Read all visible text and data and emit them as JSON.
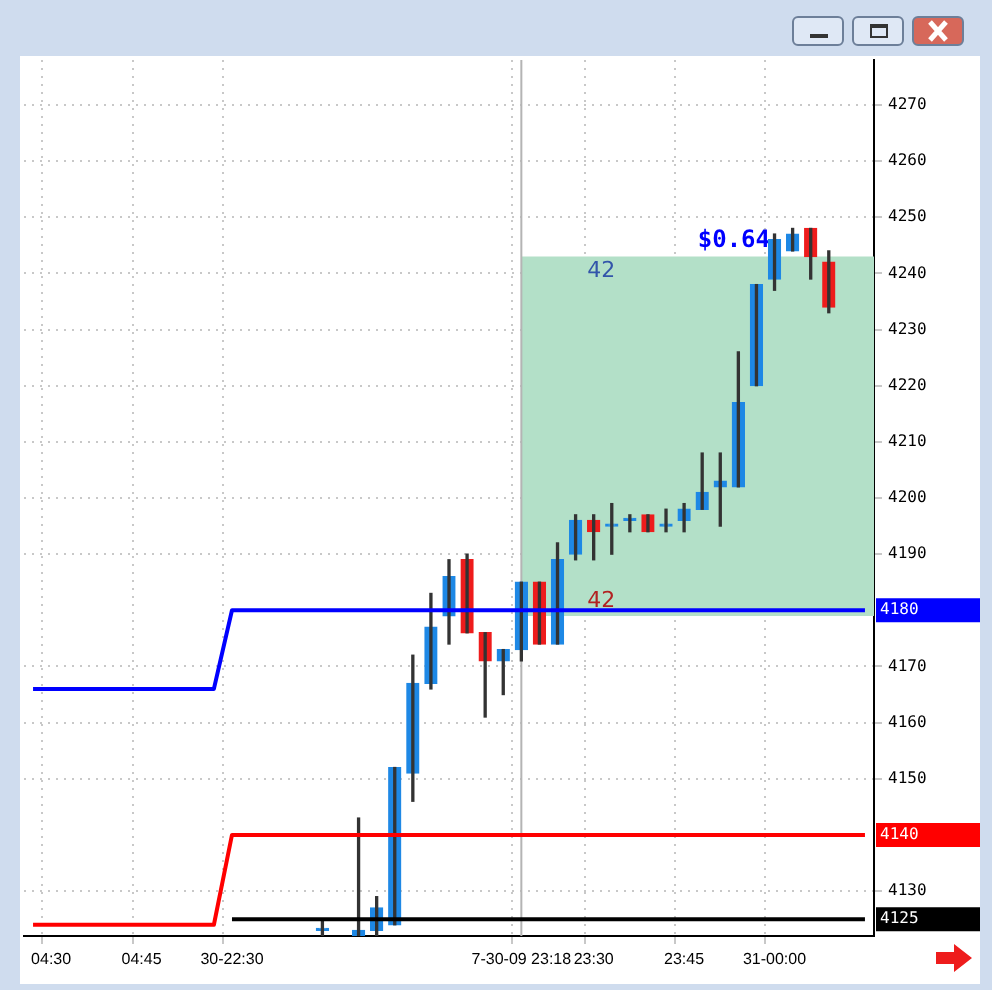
{
  "chart_data": {
    "type": "candlestick",
    "categories": [
      null,
      "04:30",
      null,
      null,
      null,
      null,
      "04:45",
      null,
      null,
      null,
      null,
      "30-22:30",
      null,
      null,
      null,
      null,
      null,
      null,
      null,
      null,
      null,
      null,
      null,
      null,
      null,
      null,
      null,
      "7-30-09 23:18",
      null,
      null,
      null,
      "23:30",
      null,
      null,
      null,
      null,
      "23:45",
      null,
      null,
      null,
      null,
      "31-00:00",
      null,
      null,
      null,
      null,
      null
    ],
    "ohlc": [
      null,
      null,
      null,
      null,
      null,
      null,
      null,
      null,
      null,
      null,
      null,
      null,
      null,
      null,
      null,
      null,
      [
        4123,
        4125,
        4122,
        4123
      ],
      null,
      [
        4122,
        4143,
        4122,
        4123
      ],
      [
        4123,
        4129,
        4122,
        4127
      ],
      [
        4124,
        4152,
        4124,
        4152
      ],
      [
        4151,
        4172,
        4146,
        4167
      ],
      [
        4167,
        4183,
        4166,
        4177
      ],
      [
        4179,
        4189,
        4174,
        4186
      ],
      [
        4189,
        4190,
        4176,
        4176
      ],
      [
        4176,
        4176,
        4161,
        4171
      ],
      [
        4171,
        4173,
        4165,
        4173
      ],
      [
        4173,
        4185,
        4171,
        4185
      ],
      [
        4185,
        4185,
        4174,
        4174
      ],
      [
        4174,
        4192,
        4174,
        4189
      ],
      [
        4190,
        4197,
        4189,
        4196
      ],
      [
        4196,
        4197,
        4189,
        4194
      ],
      [
        4195,
        4199,
        4190,
        4195
      ],
      [
        4196,
        4197,
        4194,
        4196
      ],
      [
        4197,
        4197,
        4194,
        4194
      ],
      [
        4195,
        4198,
        4194,
        4195
      ],
      [
        4196,
        4199,
        4194,
        4198
      ],
      [
        4198,
        4208,
        4198,
        4201
      ],
      [
        4202,
        4208,
        4195,
        4203
      ],
      [
        4202,
        4226,
        4202,
        4217
      ],
      [
        4220,
        4238,
        4220,
        4238
      ],
      [
        4239,
        4247,
        4237,
        4246
      ],
      [
        4244,
        4248,
        4244,
        4247
      ],
      [
        4248,
        4248,
        4239,
        4243
      ],
      [
        4242,
        4244,
        4233,
        4234
      ],
      null,
      null
    ],
    "colors": [
      null,
      null,
      null,
      null,
      null,
      null,
      null,
      null,
      null,
      null,
      null,
      null,
      null,
      null,
      null,
      null,
      "#1e88e5",
      null,
      "#1e88e5",
      "#1e88e5",
      "#1e88e5",
      "#1e88e5",
      "#1e88e5",
      "#1e88e5",
      "#ee1c1c",
      "#ee1c1c",
      "#1e88e5",
      "#1e88e5",
      "#ee1c1c",
      "#1e88e5",
      "#1e88e5",
      "#ee1c1c",
      "#1e88e5",
      "#1e88e5",
      "#ee1c1c",
      "#1e88e5",
      "#1e88e5",
      "#1e88e5",
      "#1e88e5",
      "#1e88e5",
      "#1e88e5",
      "#1e88e5",
      "#1e88e5",
      "#ee1c1c",
      "#ee1c1c",
      null,
      null
    ],
    "series": [
      {
        "type": "line",
        "color": "#0000ff",
        "values": [
          4166,
          4166,
          4166,
          4166,
          4166,
          4166,
          4166,
          4166,
          4166,
          4166,
          4166,
          4180,
          4180,
          4180,
          4180,
          4180,
          4180,
          4180,
          4180,
          4180,
          4180,
          4180,
          4180,
          4180,
          4180,
          4180,
          4180,
          4180,
          4180,
          4180,
          4180,
          4180,
          4180,
          4180,
          4180,
          4180,
          4180,
          4180,
          4180,
          4180,
          4180,
          4180,
          4180,
          4180,
          4180,
          4180,
          4180
        ],
        "value_labels": [
          null,
          null,
          null,
          null,
          null,
          null,
          null,
          null,
          null,
          null,
          null,
          null,
          null,
          null,
          null,
          null,
          null,
          null,
          null,
          null,
          null,
          null,
          null,
          null,
          null,
          null,
          null,
          null,
          null,
          null,
          null,
          null,
          null,
          null,
          null,
          null,
          null,
          null,
          null,
          null,
          null,
          null,
          null,
          null,
          null,
          null,
          "4180"
        ]
      },
      {
        "type": "line",
        "color": "#ff0000",
        "values": [
          4124,
          4124,
          4124,
          4124,
          4124,
          4124,
          4124,
          4124,
          4124,
          4124,
          4124,
          4140,
          4140,
          4140,
          4140,
          4140,
          4140,
          4140,
          4140,
          4140,
          4140,
          4140,
          4140,
          4140,
          4140,
          4140,
          4140,
          4140,
          4140,
          4140,
          4140,
          4140,
          4140,
          4140,
          4140,
          4140,
          4140,
          4140,
          4140,
          4140,
          4140,
          4140,
          4140,
          4140,
          4140,
          4140,
          4140
        ],
        "value_labels": [
          null,
          null,
          null,
          null,
          null,
          null,
          null,
          null,
          null,
          null,
          null,
          null,
          null,
          null,
          null,
          null,
          null,
          null,
          null,
          null,
          null,
          null,
          null,
          null,
          null,
          null,
          null,
          null,
          null,
          null,
          null,
          null,
          null,
          null,
          null,
          null,
          null,
          null,
          null,
          null,
          null,
          null,
          null,
          null,
          null,
          null,
          "4140"
        ]
      },
      {
        "type": "line",
        "color": "#000000",
        "values": [
          null,
          null,
          null,
          null,
          null,
          null,
          null,
          null,
          null,
          null,
          null,
          4125,
          4125,
          4125,
          4125,
          4125,
          4125,
          4125,
          4125,
          4125,
          4125,
          4125,
          4125,
          4125,
          4125,
          4125,
          4125,
          4125,
          4125,
          4125,
          4125,
          4125,
          4125,
          4125,
          4125,
          4125,
          4125,
          4125,
          4125,
          4125,
          4125,
          4125,
          4125,
          4125,
          4125,
          4125,
          4125
        ],
        "value_labels": [
          null,
          null,
          null,
          null,
          null,
          null,
          null,
          null,
          null,
          null,
          null,
          null,
          null,
          null,
          null,
          null,
          null,
          null,
          null,
          null,
          null,
          null,
          null,
          null,
          null,
          null,
          null,
          null,
          null,
          null,
          null,
          null,
          null,
          null,
          null,
          null,
          null,
          null,
          null,
          null,
          null,
          null,
          null,
          null,
          null,
          null,
          "4125"
        ]
      }
    ],
    "ylim": [
      4122,
      4278
    ],
    "yticks": [
      4130,
      4150,
      4160,
      4170,
      4190,
      4200,
      4210,
      4220,
      4230,
      4240,
      4250,
      4260,
      4270
    ],
    "ref_lines": [
      {
        "axis": "x",
        "value": "7-30-09 23:18",
        "color": "#b4b4b4"
      }
    ],
    "bands": [
      {
        "axis": "y",
        "from": 4179,
        "to": 4243,
        "label": "$0.64",
        "color": "#b3e0c8"
      }
    ],
    "annotations": [
      "42",
      "42"
    ],
    "grid": true,
    "legend": false
  }
}
